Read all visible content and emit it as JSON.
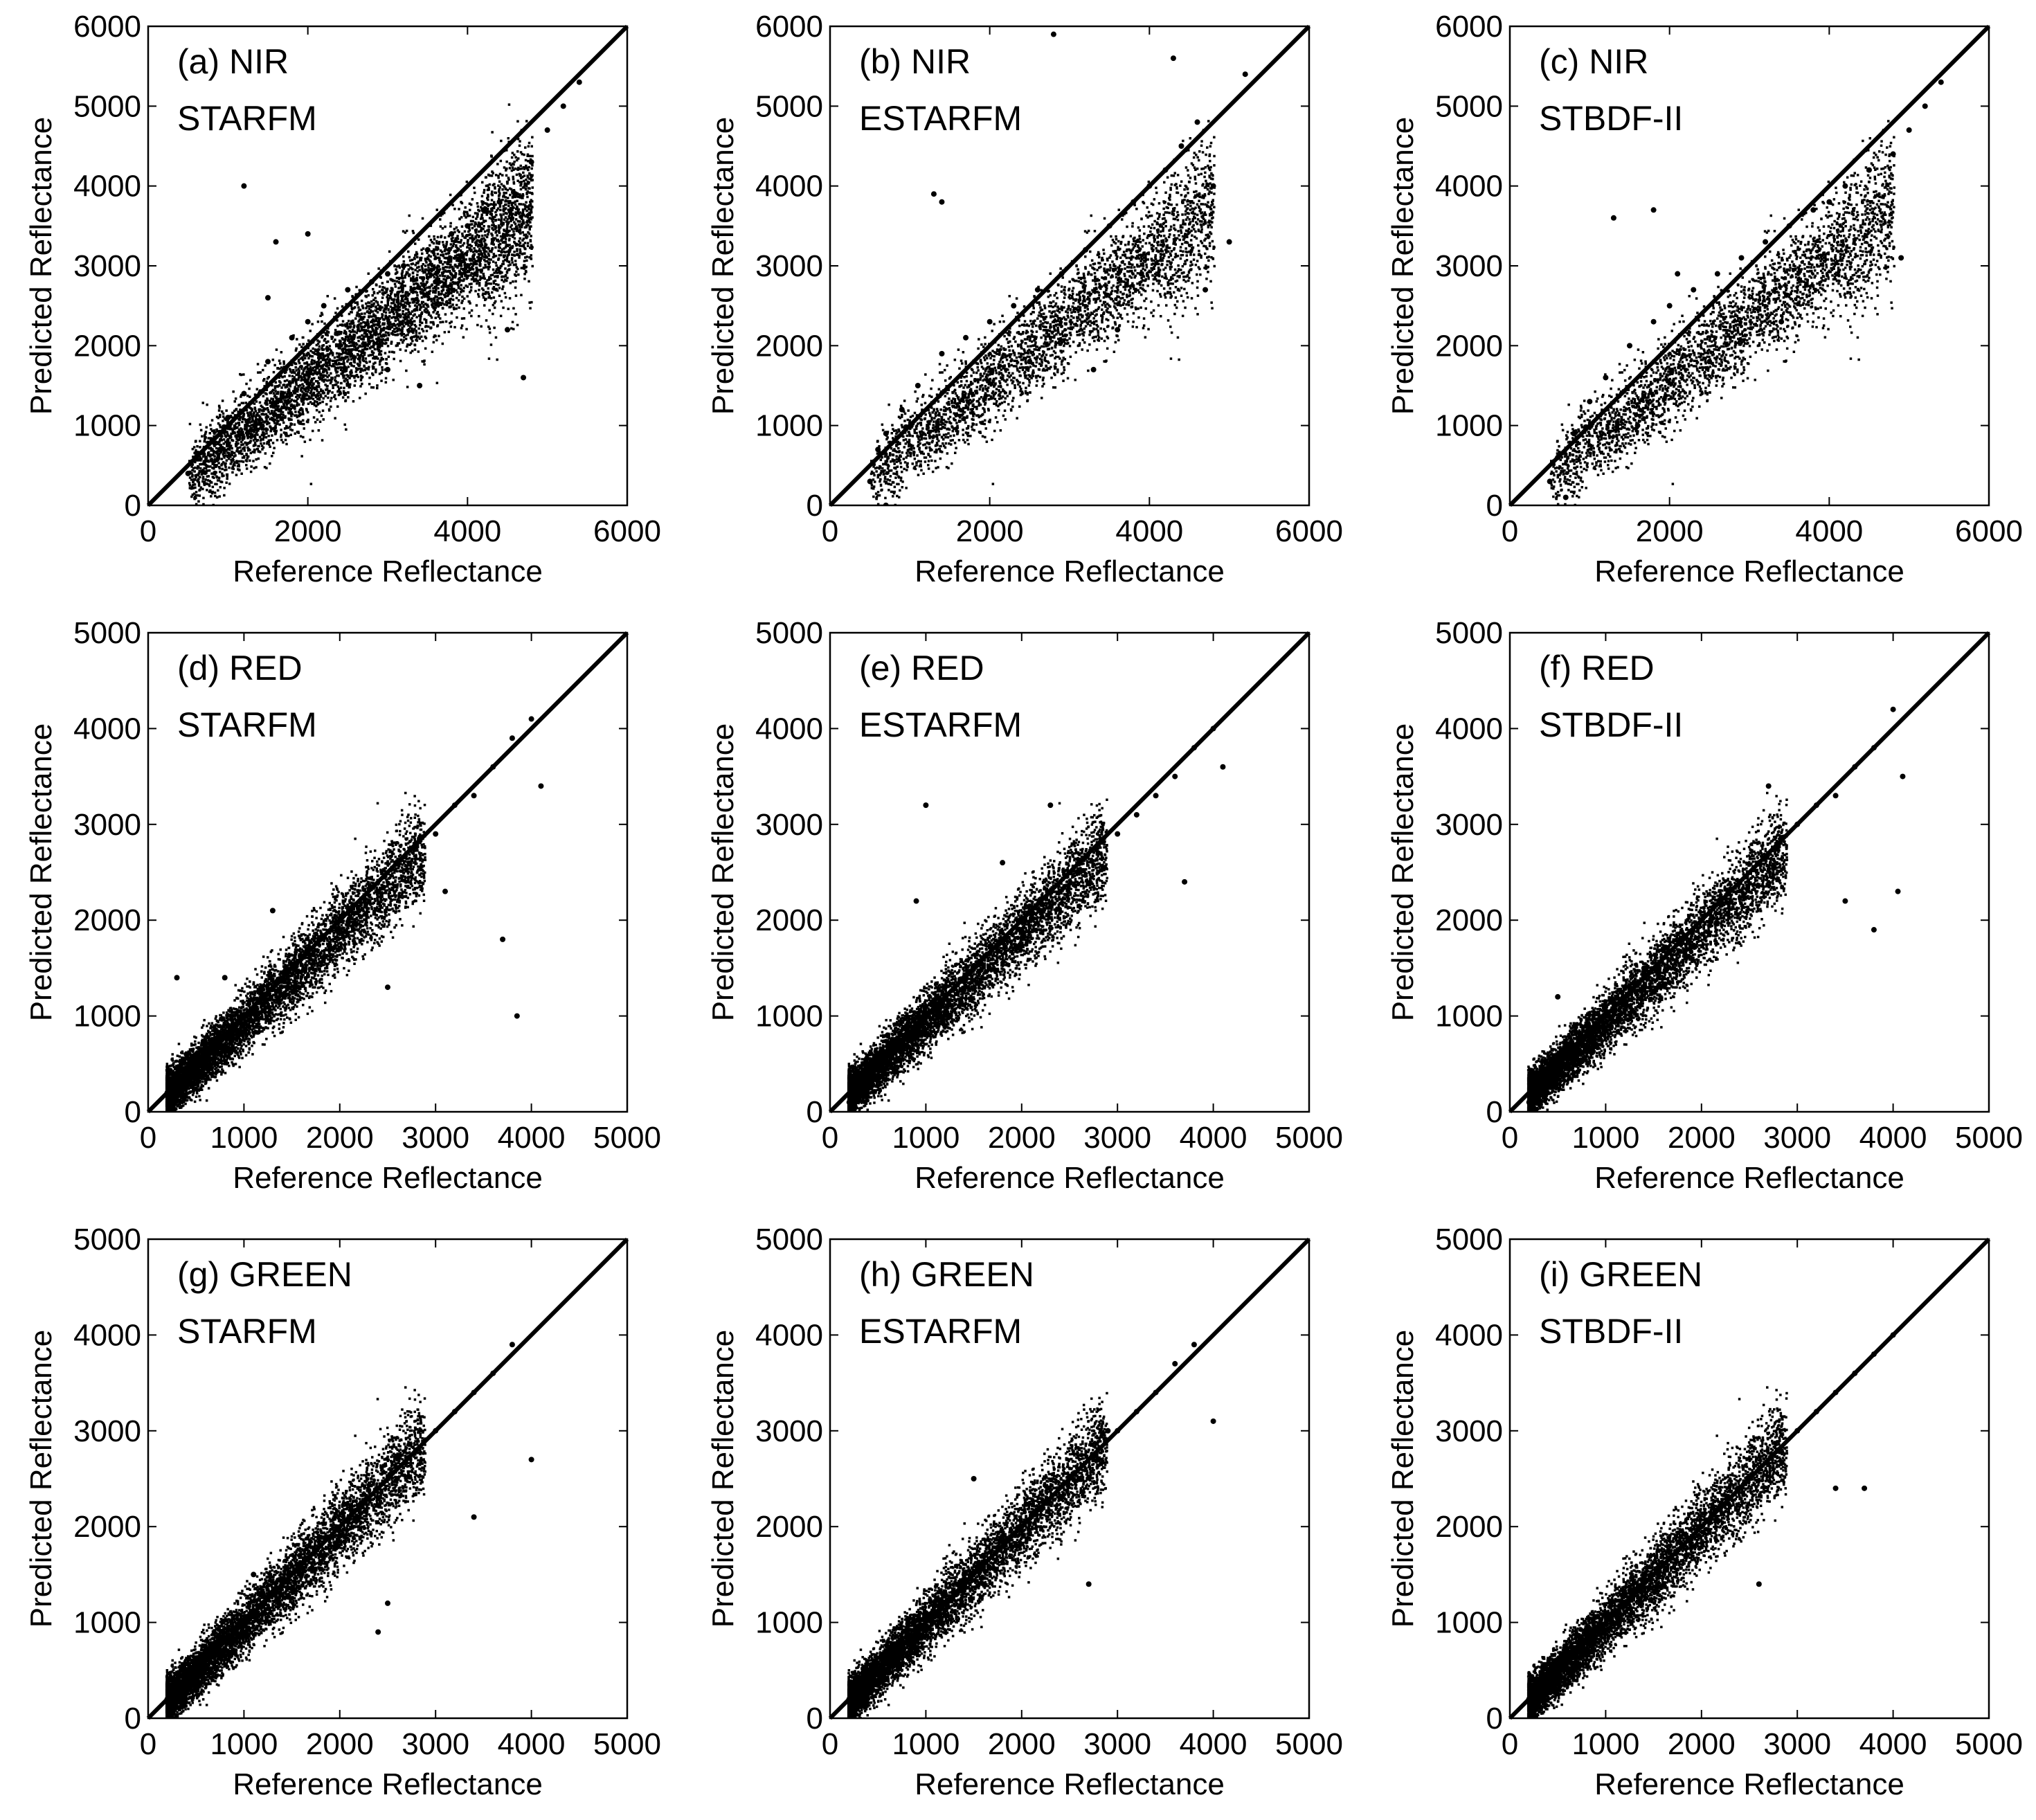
{
  "figure": {
    "description": "3x3 grid of scatter plots: predicted vs reference reflectance",
    "point_color": "#000000",
    "line_color": "#000000"
  },
  "chart_data": [
    {
      "type": "scatter",
      "panel": "(a) NIR",
      "method": "STARFM",
      "xlabel": "Reference Reflectance",
      "ylabel": "Predicted Reflectance",
      "xlim": [
        0,
        6000
      ],
      "ylim": [
        0,
        6000
      ],
      "xticks": [
        0,
        2000,
        4000,
        6000
      ],
      "yticks": [
        0,
        1000,
        2000,
        3000,
        4000,
        5000,
        6000
      ],
      "identity_line": true,
      "series": [
        {
          "name": "pixels",
          "x": [
            500,
            600,
            800,
            1000,
            1200,
            1500,
            1800,
            2000,
            2200,
            2500,
            2800,
            3000,
            3200,
            3500,
            3800,
            4000,
            4200,
            4400,
            4600,
            4800,
            5000,
            5200,
            5400,
            1200,
            1600,
            2000,
            3000,
            3400,
            4000,
            4500,
            900,
            1500,
            2400,
            3600,
            4700
          ],
          "y": [
            400,
            600,
            800,
            1100,
            1400,
            1800,
            2100,
            2300,
            2500,
            2700,
            2800,
            2900,
            3000,
            3200,
            3400,
            3500,
            3700,
            3800,
            3900,
            4300,
            4700,
            5000,
            5300,
            4000,
            3300,
            3400,
            1700,
            1500,
            3000,
            2200,
            700,
            2600,
            2000,
            2800,
            1600
          ]
        }
      ]
    },
    {
      "type": "scatter",
      "panel": "(b) NIR",
      "method": "ESTARFM",
      "xlabel": "Reference Reflectance",
      "ylabel": "Predicted Reflectance",
      "xlim": [
        0,
        6000
      ],
      "ylim": [
        0,
        6000
      ],
      "xticks": [
        0,
        2000,
        4000,
        6000
      ],
      "yticks": [
        0,
        1000,
        2000,
        3000,
        4000,
        5000,
        6000
      ],
      "identity_line": true,
      "series": [
        {
          "name": "pixels",
          "x": [
            500,
            600,
            700,
            900,
            1100,
            1400,
            1700,
            2000,
            2300,
            2600,
            2900,
            3200,
            3500,
            3800,
            4000,
            4200,
            4400,
            4600,
            4800,
            5000,
            5200,
            1400,
            2800,
            3300,
            3600,
            4300,
            700,
            1300,
            2500,
            3900,
            4700
          ],
          "y": [
            300,
            700,
            900,
            1200,
            1500,
            1900,
            2100,
            2300,
            2500,
            2700,
            2900,
            3200,
            3500,
            3800,
            4000,
            4200,
            4500,
            4800,
            4000,
            3300,
            5400,
            3800,
            5900,
            1700,
            2200,
            5600,
            0,
            3900,
            1800,
            2900,
            2700
          ]
        }
      ]
    },
    {
      "type": "scatter",
      "panel": "(c) NIR",
      "method": "STBDF-II",
      "xlabel": "Reference Reflectance",
      "ylabel": "Predicted Reflectance",
      "xlim": [
        0,
        6000
      ],
      "ylim": [
        0,
        6000
      ],
      "xticks": [
        0,
        2000,
        4000,
        6000
      ],
      "yticks": [
        0,
        1000,
        2000,
        3000,
        4000,
        5000,
        6000
      ],
      "identity_line": true,
      "series": [
        {
          "name": "pixels",
          "x": [
            500,
            600,
            800,
            1000,
            1200,
            1500,
            1800,
            2000,
            2300,
            2600,
            2900,
            3200,
            3500,
            3800,
            4000,
            4200,
            4500,
            4800,
            5000,
            5200,
            5400,
            1300,
            1800,
            2500,
            3400,
            4900,
            700,
            1600,
            2100
          ],
          "y": [
            300,
            600,
            900,
            1300,
            1600,
            2000,
            2300,
            2500,
            2700,
            2900,
            3100,
            3300,
            3500,
            3700,
            3800,
            4000,
            4200,
            4400,
            4700,
            5000,
            5300,
            3600,
            3700,
            1800,
            2300,
            3100,
            100,
            1000,
            2900
          ]
        }
      ]
    },
    {
      "type": "scatter",
      "panel": "(d) RED",
      "method": "STARFM",
      "xlabel": "Reference Reflectance",
      "ylabel": "Predicted Reflectance",
      "xlim": [
        0,
        5000
      ],
      "ylim": [
        0,
        5000
      ],
      "xticks": [
        0,
        1000,
        2000,
        3000,
        4000,
        5000
      ],
      "yticks": [
        0,
        1000,
        2000,
        3000,
        4000,
        5000
      ],
      "identity_line": true,
      "series": [
        {
          "name": "pixels",
          "x": [
            200,
            300,
            400,
            600,
            800,
            1000,
            1200,
            1400,
            1600,
            1800,
            2000,
            2200,
            2400,
            2600,
            2800,
            3000,
            3200,
            3400,
            3600,
            3800,
            4000,
            4100,
            300,
            800,
            1300,
            2500,
            3100,
            3700,
            3850
          ],
          "y": [
            200,
            400,
            600,
            700,
            800,
            1000,
            1200,
            1400,
            1600,
            1800,
            1900,
            2100,
            2300,
            2600,
            2800,
            2900,
            3200,
            3300,
            3600,
            3900,
            4100,
            3400,
            1400,
            1400,
            2100,
            1300,
            2300,
            1800,
            1000
          ]
        }
      ]
    },
    {
      "type": "scatter",
      "panel": "(e) RED",
      "method": "ESTARFM",
      "xlabel": "Reference Reflectance",
      "ylabel": "Predicted Reflectance",
      "xlim": [
        0,
        5000
      ],
      "ylim": [
        0,
        5000
      ],
      "xticks": [
        0,
        1000,
        2000,
        3000,
        4000,
        5000
      ],
      "yticks": [
        0,
        1000,
        2000,
        3000,
        4000,
        5000
      ],
      "identity_line": true,
      "series": [
        {
          "name": "pixels",
          "x": [
            200,
            300,
            400,
            600,
            800,
            1000,
            1200,
            1400,
            1600,
            1800,
            2000,
            2200,
            2400,
            2600,
            2800,
            3000,
            3200,
            3400,
            3600,
            3800,
            4000,
            4100,
            900,
            1000,
            1800,
            2300,
            3700,
            1200
          ],
          "y": [
            100,
            300,
            500,
            800,
            900,
            1100,
            1300,
            1400,
            1600,
            1800,
            1900,
            2100,
            2300,
            2500,
            2700,
            2900,
            3100,
            3300,
            3500,
            3800,
            4000,
            3600,
            2200,
            3200,
            2600,
            3200,
            2400,
            900
          ]
        }
      ]
    },
    {
      "type": "scatter",
      "panel": "(f) RED",
      "method": "STBDF-II",
      "xlabel": "Reference Reflectance",
      "ylabel": "Predicted Reflectance",
      "xlim": [
        0,
        5000
      ],
      "ylim": [
        0,
        5000
      ],
      "xticks": [
        0,
        1000,
        2000,
        3000,
        4000,
        5000
      ],
      "yticks": [
        0,
        1000,
        2000,
        3000,
        4000,
        5000
      ],
      "identity_line": true,
      "series": [
        {
          "name": "pixels",
          "x": [
            200,
            300,
            400,
            600,
            800,
            1000,
            1200,
            1400,
            1600,
            1800,
            2000,
            2200,
            2400,
            2600,
            2800,
            3000,
            3200,
            3400,
            3600,
            3800,
            4000,
            4100,
            2700,
            3500,
            3800,
            4050,
            500
          ],
          "y": [
            100,
            300,
            500,
            700,
            900,
            1100,
            1300,
            1500,
            1700,
            1800,
            2000,
            2200,
            2400,
            2600,
            2800,
            3000,
            3200,
            3300,
            3600,
            3800,
            4200,
            3500,
            3400,
            2200,
            1900,
            2300,
            1200
          ]
        }
      ]
    },
    {
      "type": "scatter",
      "panel": "(g) GREEN",
      "method": "STARFM",
      "xlabel": "Reference Reflectance",
      "ylabel": "Predicted Reflectance",
      "xlim": [
        0,
        5000
      ],
      "ylim": [
        0,
        5000
      ],
      "xticks": [
        0,
        1000,
        2000,
        3000,
        4000,
        5000
      ],
      "yticks": [
        0,
        1000,
        2000,
        3000,
        4000,
        5000
      ],
      "identity_line": true,
      "series": [
        {
          "name": "pixels",
          "x": [
            200,
            300,
            400,
            600,
            800,
            1000,
            1200,
            1400,
            1600,
            1800,
            2000,
            2200,
            2400,
            2600,
            2800,
            3000,
            3200,
            3400,
            3600,
            3800,
            4000,
            2400,
            2500,
            3400,
            1100
          ],
          "y": [
            200,
            400,
            500,
            700,
            800,
            1000,
            1200,
            1400,
            1500,
            1700,
            1900,
            2100,
            2300,
            2500,
            2800,
            3000,
            3200,
            3400,
            3600,
            3900,
            2700,
            900,
            1200,
            2100,
            1500
          ]
        }
      ]
    },
    {
      "type": "scatter",
      "panel": "(h) GREEN",
      "method": "ESTARFM",
      "xlabel": "Reference Reflectance",
      "ylabel": "Predicted Reflectance",
      "xlim": [
        0,
        5000
      ],
      "ylim": [
        0,
        5000
      ],
      "xticks": [
        0,
        1000,
        2000,
        3000,
        4000,
        5000
      ],
      "yticks": [
        0,
        1000,
        2000,
        3000,
        4000,
        5000
      ],
      "identity_line": true,
      "series": [
        {
          "name": "pixels",
          "x": [
            200,
            300,
            400,
            600,
            800,
            1000,
            1200,
            1400,
            1600,
            1800,
            2000,
            2200,
            2400,
            2600,
            2800,
            3000,
            3200,
            3400,
            3600,
            3800,
            4000,
            2700,
            2900,
            1500
          ],
          "y": [
            200,
            300,
            500,
            700,
            900,
            1100,
            1300,
            1500,
            1700,
            1900,
            2000,
            2200,
            2300,
            2500,
            2700,
            3000,
            3200,
            3400,
            3700,
            3900,
            3100,
            1400,
            3000,
            2500
          ]
        }
      ]
    },
    {
      "type": "scatter",
      "panel": "(i) GREEN",
      "method": "STBDF-II",
      "xlabel": "Reference Reflectance",
      "ylabel": "Predicted Reflectance",
      "xlim": [
        0,
        5000
      ],
      "ylim": [
        0,
        5000
      ],
      "xticks": [
        0,
        1000,
        2000,
        3000,
        4000,
        5000
      ],
      "yticks": [
        0,
        1000,
        2000,
        3000,
        4000,
        5000
      ],
      "identity_line": true,
      "series": [
        {
          "name": "pixels",
          "x": [
            200,
            300,
            400,
            600,
            800,
            1000,
            1200,
            1400,
            1600,
            1800,
            2000,
            2200,
            2400,
            2600,
            2800,
            3000,
            3200,
            3400,
            3600,
            3800,
            4000,
            2600,
            3400,
            3700
          ],
          "y": [
            200,
            300,
            500,
            700,
            900,
            1100,
            1300,
            1500,
            1600,
            1800,
            2000,
            2200,
            2400,
            2600,
            2800,
            3000,
            3200,
            3400,
            3600,
            3800,
            4000,
            1400,
            2400,
            2400
          ]
        }
      ]
    }
  ]
}
